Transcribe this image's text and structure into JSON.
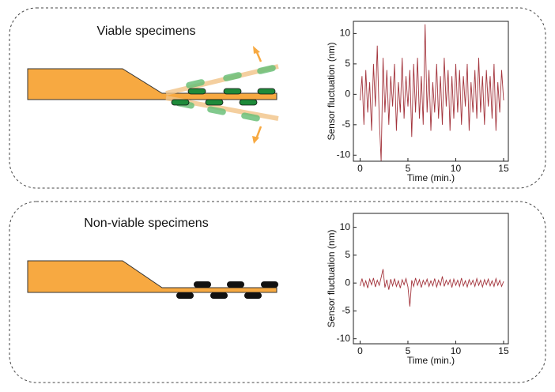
{
  "chart_data": [
    {
      "type": "line",
      "title": "Viable specimens",
      "xlabel": "Time (min.)",
      "ylabel": "Sensor fluctuation (nm)",
      "x": [
        0,
        0.2,
        0.4,
        0.6,
        0.8,
        1,
        1.2,
        1.4,
        1.6,
        1.8,
        2,
        2.2,
        2.4,
        2.6,
        2.8,
        3,
        3.2,
        3.4,
        3.6,
        3.8,
        4,
        4.2,
        4.4,
        4.6,
        4.8,
        5,
        5.2,
        5.4,
        5.6,
        5.8,
        6,
        6.2,
        6.4,
        6.6,
        6.8,
        7,
        7.2,
        7.4,
        7.6,
        7.8,
        8,
        8.2,
        8.4,
        8.6,
        8.8,
        9,
        9.2,
        9.4,
        9.6,
        9.8,
        10,
        10.2,
        10.4,
        10.6,
        10.8,
        11,
        11.2,
        11.4,
        11.6,
        11.8,
        12,
        12.2,
        12.4,
        12.6,
        12.8,
        13,
        13.2,
        13.4,
        13.6,
        13.8,
        14,
        14.2,
        14.4,
        14.6,
        14.8,
        15
      ],
      "values": [
        -1,
        3,
        -5,
        4,
        -3,
        2,
        -6,
        5,
        -2,
        8,
        -4,
        -11,
        6,
        -3,
        4,
        -5,
        3,
        -2,
        5,
        -6,
        2,
        -3,
        6,
        -4,
        3,
        -2,
        4,
        -7,
        5,
        -3,
        6,
        -4,
        3,
        -5,
        11.5,
        -3,
        4,
        -6,
        2,
        -3,
        5,
        -4,
        3,
        -5,
        6,
        -2,
        4,
        -6,
        3,
        -4,
        5,
        -3,
        4,
        -5,
        3,
        -2,
        5,
        -6,
        2,
        -3,
        4,
        -4,
        6,
        -3,
        3,
        -5,
        4,
        -2,
        3,
        -4,
        5,
        -6,
        2,
        -3,
        4,
        -1
      ],
      "color": "#a3343c",
      "xlim": [
        -0.7,
        15.5
      ],
      "ylim": [
        -11,
        12
      ],
      "xticks": [
        0,
        5,
        10,
        15
      ],
      "yticks": [
        -10,
        -5,
        0,
        5,
        10
      ]
    },
    {
      "type": "line",
      "title": "Non-viable specimens",
      "xlabel": "Time (min.)",
      "ylabel": "Sensor fluctuation (nm)",
      "x": [
        0,
        0.2,
        0.4,
        0.6,
        0.8,
        1,
        1.2,
        1.4,
        1.6,
        1.8,
        2,
        2.2,
        2.4,
        2.6,
        2.8,
        3,
        3.2,
        3.4,
        3.6,
        3.8,
        4,
        4.2,
        4.4,
        4.6,
        4.8,
        5,
        5.2,
        5.4,
        5.6,
        5.8,
        6,
        6.2,
        6.4,
        6.6,
        6.8,
        7,
        7.2,
        7.4,
        7.6,
        7.8,
        8,
        8.2,
        8.4,
        8.6,
        8.8,
        9,
        9.2,
        9.4,
        9.6,
        9.8,
        10,
        10.2,
        10.4,
        10.6,
        10.8,
        11,
        11.2,
        11.4,
        11.6,
        11.8,
        12,
        12.2,
        12.4,
        12.6,
        12.8,
        13,
        13.2,
        13.4,
        13.6,
        13.8,
        14,
        14.2,
        14.4,
        14.6,
        14.8,
        15
      ],
      "values": [
        -0.5,
        0.8,
        -0.6,
        0.4,
        -0.9,
        0.7,
        -0.3,
        0.9,
        -0.7,
        0.5,
        -0.4,
        1.0,
        2.5,
        -0.8,
        0.6,
        -1.2,
        0.7,
        -0.5,
        0.8,
        -0.6,
        0.4,
        -0.9,
        0.6,
        -0.3,
        0.8,
        -0.7,
        -4.2,
        0.5,
        -0.6,
        0.9,
        -0.4,
        0.6,
        -0.8,
        0.5,
        -0.3,
        0.7,
        -0.6,
        0.4,
        -0.5,
        0.8,
        -0.7,
        0.5,
        -0.4,
        1.2,
        -0.6,
        0.5,
        -0.3,
        0.6,
        -0.8,
        0.7,
        -0.4,
        0.5,
        -0.6,
        0.9,
        -0.5,
        0.4,
        -0.7,
        0.6,
        -0.3,
        0.5,
        -0.6,
        0.8,
        -0.4,
        0.5,
        -0.7,
        0.6,
        -0.3,
        0.7,
        -0.5,
        0.4,
        -0.6,
        0.8,
        -0.4,
        0.5,
        -0.6,
        0.3
      ],
      "color": "#a3343c",
      "xlim": [
        -0.7,
        15.5
      ],
      "ylim": [
        -10.9,
        12.5
      ],
      "xticks": [
        0,
        5,
        10,
        15
      ],
      "yticks": [
        -10,
        -5,
        0,
        5,
        10
      ]
    }
  ]
}
